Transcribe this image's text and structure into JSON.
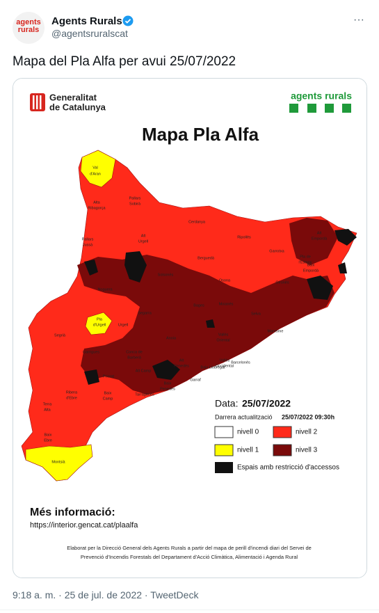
{
  "tweet": {
    "author_name": "Agents Rurals",
    "author_handle": "@agentsruralscat",
    "avatar_text": [
      "agents",
      "rurals"
    ],
    "menu": "···",
    "text": "Mapa del Pla Alfa per avui 25/07/2022",
    "footer": "9:18 a. m. · 25 de jul. de 2022 · TweetDeck"
  },
  "map": {
    "logo_left": [
      "Generalitat",
      "de Catalunya"
    ],
    "logo_right": "agents rurals",
    "title": "Mapa Pla Alfa",
    "date_label": "Data:",
    "date_value": "25/07/2022",
    "update_label": "Darrera actualització",
    "update_value": "25/07/2022  09:30h",
    "legend": [
      "nivell 0",
      "nivell 2",
      "nivell 1",
      "nivell 3",
      "Espais amb restricció d'accessos"
    ],
    "more_info_title": "Més informació:",
    "more_info_url": "https://interior.gencat.cat/plaalfa",
    "credits": [
      "Elaborat per la Direcció General dels Agents Rurals a partir del mapa de perill d'incendi diari del Servei de",
      "Prevenció d'Incendis Forestals del Departament d'Acció Climàtica, Alimentació i Agenda Rural"
    ],
    "region_labels": [
      "Val",
      "d'Aran",
      "Pallars",
      "Sobirà",
      "Alta",
      "Ribagorça",
      "Pallars",
      "Jussà",
      "Alt",
      "Urgell",
      "Cerdanya",
      "Ripollès",
      "Garrotxa",
      "Alt",
      "Empordà",
      "Berguedà",
      "Solsonès",
      "Osona",
      "Pla de",
      "l'Estany",
      "Noguera",
      "Gironès",
      "Bages",
      "Moianès",
      "Selva",
      "Pla",
      "d'Urgell",
      "Urgell",
      "Segarra",
      "Baix",
      "Empordà",
      "Segrià",
      "Anoia",
      "Vallès",
      "Oriental",
      "Maresme",
      "Garrigues",
      "Conca de",
      "Barberà",
      "Alt",
      "Penedès",
      "Vallès",
      "Occidental",
      "Barcelonès",
      "Alt Camp",
      "Baix Llobregat",
      "Priorat",
      "Garraf",
      "Ribera",
      "d'Ebre",
      "Baix",
      "Camp",
      "Tarragonès",
      "Baix",
      "Penedès",
      "Terra",
      "Alta",
      "Baix",
      "Ebre",
      "Montsià"
    ]
  }
}
